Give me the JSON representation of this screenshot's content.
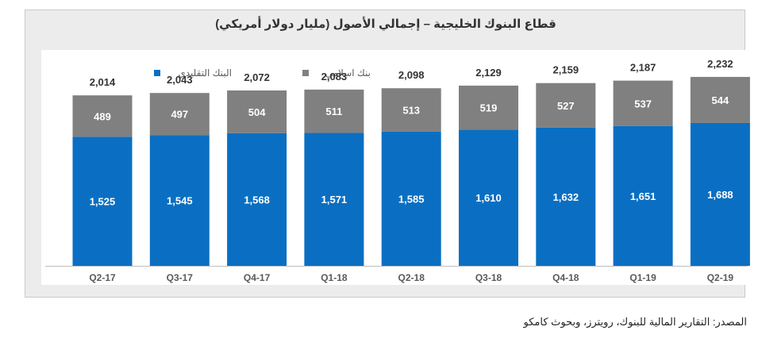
{
  "chart_data": {
    "type": "bar",
    "stacked": true,
    "title": "قطاع البنوك الخليجية – إجمالي الأصول (مليار دولار أمريكي)",
    "categories": [
      "Q2-17",
      "Q3-17",
      "Q4-17",
      "Q1-18",
      "Q2-18",
      "Q3-18",
      "Q4-18",
      "Q1-19",
      "Q2-19"
    ],
    "series": [
      {
        "name": "البنك التقليدي",
        "color": "#0a6fc2",
        "values": [
          1525,
          1545,
          1568,
          1571,
          1585,
          1610,
          1632,
          1651,
          1688
        ],
        "labels": [
          "1,525",
          "1,545",
          "1,568",
          "1,571",
          "1,585",
          "1,610",
          "1,632",
          "1,651",
          "1,688"
        ]
      },
      {
        "name": "بنك اسلامي",
        "color": "#808080",
        "values": [
          489,
          497,
          504,
          511,
          513,
          519,
          527,
          537,
          544
        ],
        "labels": [
          "489",
          "497",
          "504",
          "511",
          "513",
          "519",
          "527",
          "537",
          "544"
        ]
      }
    ],
    "totals": [
      2014,
      2043,
      2072,
      2083,
      2098,
      2129,
      2159,
      2187,
      2232
    ],
    "total_labels": [
      "2,014",
      "2,043",
      "2,072",
      "2,083",
      "2,098",
      "2,129",
      "2,159",
      "2,187",
      "2,232"
    ],
    "ylim": [
      0,
      2550
    ],
    "legend_position": "top-left",
    "grid": false
  },
  "source_note": "المصدر: التقارير المالية للبنوك، رويترز، وبحوث كامكو"
}
